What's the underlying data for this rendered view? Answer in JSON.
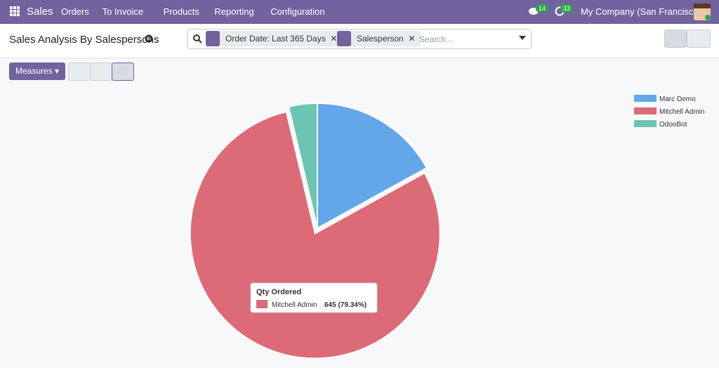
{
  "navbar": {
    "app": "Sales",
    "menu": [
      "Orders",
      "To Invoice",
      "Products",
      "Reporting",
      "Configuration"
    ],
    "messages_badge": 14,
    "activities_badge": 33,
    "company": "My Company (San Francisco)"
  },
  "control_panel": {
    "title": "Sales Analysis By Salespersons",
    "facets": [
      "Order Date: Last 365 Days",
      "Salesperson"
    ],
    "search_placeholder": "Search...",
    "measures_button": "Measures"
  },
  "chart_data": {
    "type": "pie",
    "measure": "Qty Ordered",
    "categories": [
      "Marc Demo",
      "Mitchell Admin",
      "OdooBot"
    ],
    "values": [
      138,
      645,
      30
    ],
    "value_labels": [
      null,
      "645 (79.34%)",
      null
    ],
    "colors": [
      "#63a6ea",
      "#dc6a77",
      "#6cc5b0"
    ],
    "legend": "top-right"
  }
}
